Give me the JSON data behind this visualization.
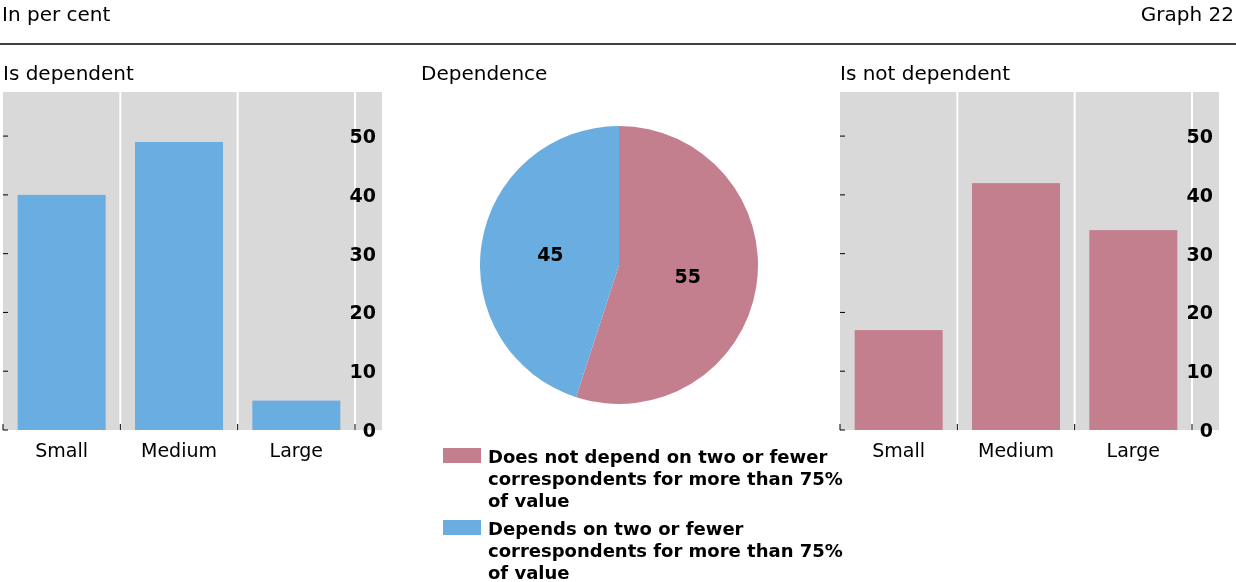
{
  "chart_data": [
    {
      "type": "bar",
      "title": "Is dependent",
      "annotations": [
        "In per cent",
        "Graph 22"
      ],
      "categories": [
        "Small",
        "Medium",
        "Large"
      ],
      "values": [
        40,
        49,
        5
      ],
      "color": "#6aade0",
      "ylim": [
        0,
        57.5
      ],
      "yticks": [
        0,
        10,
        20,
        30,
        40,
        50
      ],
      "grid": "x"
    },
    {
      "type": "pie",
      "title": "Dependence",
      "categories": [
        "Does not depend on two or fewer correspondents for more than 75% of value",
        "Depends on two or fewer correspondents for more than 75% of value"
      ],
      "values": [
        55,
        45
      ],
      "colors": [
        "#c47f8f",
        "#6aade0"
      ],
      "data_labels": true,
      "legend": "bottom"
    },
    {
      "type": "bar",
      "title": "Is not dependent",
      "categories": [
        "Small",
        "Medium",
        "Large"
      ],
      "values": [
        17,
        42,
        34
      ],
      "color": "#c47f8f",
      "ylim": [
        0,
        57.5
      ],
      "yticks": [
        0,
        10,
        20,
        30,
        40,
        50
      ],
      "grid": "x"
    }
  ]
}
